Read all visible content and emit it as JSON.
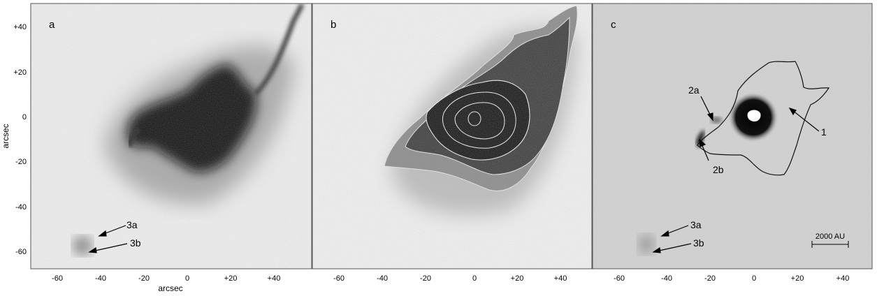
{
  "figure": {
    "axis_label_y": "arcsec",
    "axis_label_x": "arcsec",
    "panels": [
      {
        "letter": "a",
        "x_ticks": [
          "-60",
          "-40",
          "-20",
          "0",
          "+20",
          "+40"
        ],
        "y_ticks": [
          "+40",
          "+20",
          "0",
          "-20",
          "-40",
          "-60"
        ],
        "annotations": [
          "3a",
          "3b"
        ]
      },
      {
        "letter": "b",
        "x_ticks": [
          "-60",
          "-40",
          "-20",
          "0",
          "+20",
          "+40"
        ],
        "annotations": []
      },
      {
        "letter": "c",
        "x_ticks": [
          "-60",
          "-40",
          "-20",
          "0",
          "+20",
          "+40"
        ],
        "annotations": [
          "2a",
          "2b",
          "1",
          "3a",
          "3b"
        ],
        "scale_bar": "2000 AU"
      }
    ]
  }
}
